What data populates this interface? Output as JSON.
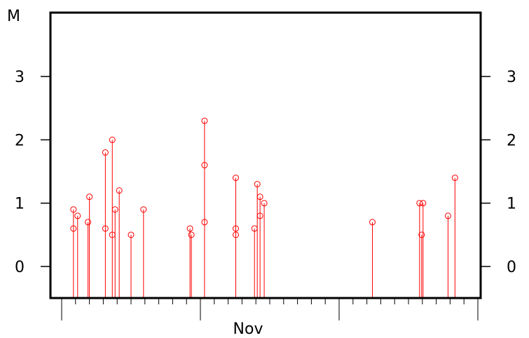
{
  "chart_data": {
    "type": "scatter",
    "style": "stem",
    "title": "",
    "ylabel": "M",
    "xlabel": "Nov",
    "ylim": [
      -0.5,
      4.0
    ],
    "yticks": [
      0,
      1,
      2,
      3
    ],
    "ytick_labels": [
      "0",
      "1",
      "2",
      "3"
    ],
    "grid": false,
    "marker_color": "#ff0000",
    "axis_color": "#000000",
    "x_range": [
      -1.0,
      30.0
    ],
    "x_major_ticks": [
      0,
      10,
      20,
      30
    ],
    "x_minor_step": 1,
    "x_labels": [
      {
        "x": 10,
        "text": "Nov"
      }
    ],
    "events": [
      {
        "x": 0.85,
        "mags": [
          0.9,
          0.6
        ]
      },
      {
        "x": 1.15,
        "mags": [
          0.8
        ]
      },
      {
        "x": 1.9,
        "mags": [
          0.7
        ]
      },
      {
        "x": 2.0,
        "mags": [
          1.1
        ]
      },
      {
        "x": 3.15,
        "mags": [
          1.8,
          0.6
        ]
      },
      {
        "x": 3.65,
        "mags": [
          2.0,
          0.5
        ]
      },
      {
        "x": 3.85,
        "mags": [
          0.9
        ]
      },
      {
        "x": 4.15,
        "mags": [
          1.2
        ]
      },
      {
        "x": 5.0,
        "mags": [
          0.5
        ]
      },
      {
        "x": 5.9,
        "mags": [
          0.9
        ]
      },
      {
        "x": 9.25,
        "mags": [
          0.6
        ]
      },
      {
        "x": 9.35,
        "mags": [
          0.5
        ]
      },
      {
        "x": 10.3,
        "mags": [
          2.3,
          1.6,
          0.7
        ]
      },
      {
        "x": 12.55,
        "mags": [
          1.4,
          0.6,
          0.5
        ]
      },
      {
        "x": 13.9,
        "mags": [
          0.6
        ]
      },
      {
        "x": 14.1,
        "mags": [
          1.3
        ]
      },
      {
        "x": 14.3,
        "mags": [
          1.1,
          0.8
        ]
      },
      {
        "x": 14.6,
        "mags": [
          1.0
        ]
      },
      {
        "x": 22.4,
        "mags": [
          0.7
        ]
      },
      {
        "x": 25.8,
        "mags": [
          1.0
        ]
      },
      {
        "x": 25.95,
        "mags": [
          0.5
        ]
      },
      {
        "x": 26.05,
        "mags": [
          1.0
        ]
      },
      {
        "x": 27.85,
        "mags": [
          0.8
        ]
      },
      {
        "x": 28.35,
        "mags": [
          1.4
        ]
      }
    ]
  }
}
